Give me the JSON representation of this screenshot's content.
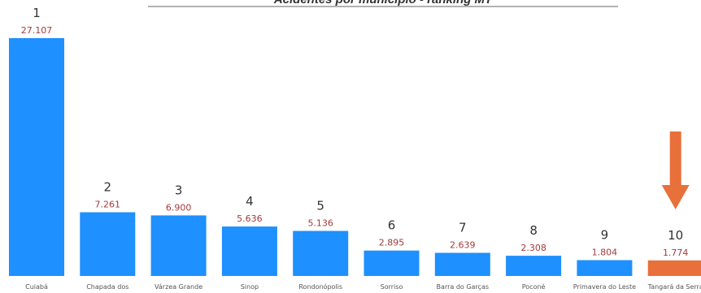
{
  "chart_data": {
    "type": "bar",
    "title": "Acidentes por município - ranking MT",
    "categories": [
      "Cuiabá",
      "Chapada dos",
      "Várzea Grande",
      "Sinop",
      "Rondonópolis",
      "Sorriso",
      "Barra do Garças",
      "Poconé",
      "Primavera do Leste",
      "Tangará da Serra"
    ],
    "values": [
      27107,
      7261,
      6900,
      5636,
      5136,
      2895,
      2639,
      2308,
      1804,
      1774
    ],
    "value_labels": [
      "27.107",
      "7.261",
      "6.900",
      "5.636",
      "5.136",
      "2.895",
      "2.639",
      "2.308",
      "1.804",
      "1.774"
    ],
    "ranks": [
      "1",
      "2",
      "3",
      "4",
      "5",
      "6",
      "7",
      "8",
      "9",
      "10"
    ],
    "highlight_index": 9,
    "ylim": [
      0,
      27107
    ],
    "grid": false,
    "colors": {
      "bar": "#1e90ff",
      "highlight": "#e8703a",
      "arrow": "#e8703a",
      "value_text": "#a33a3a",
      "rank_text": "#333333",
      "category_text": "#555555"
    }
  }
}
